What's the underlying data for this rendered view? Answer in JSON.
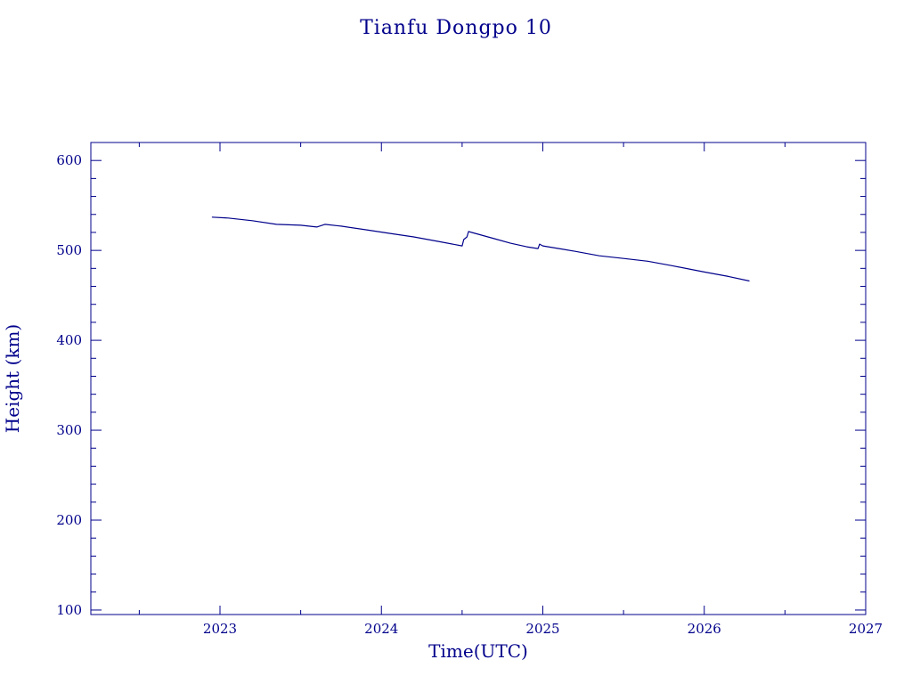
{
  "chart_data": {
    "type": "line",
    "title": "Tianfu Dongpo 10",
    "xlabel": "Time(UTC)",
    "ylabel": "Height (km)",
    "xlim": [
      2022.2,
      2027.0
    ],
    "ylim": [
      95,
      620
    ],
    "x_major_ticks": [
      2023,
      2024,
      2025,
      2026,
      2027
    ],
    "x_tick_labels": [
      "2023",
      "2024",
      "2025",
      "2026",
      "2027"
    ],
    "x_minor_step": 0.5,
    "y_major_ticks": [
      100,
      200,
      300,
      400,
      500,
      600
    ],
    "y_tick_labels": [
      "100",
      "200",
      "300",
      "400",
      "500",
      "600"
    ],
    "y_minor_step": 20,
    "grid": false,
    "line_color": "#00008b",
    "series": [
      {
        "x": [
          2022.95,
          2023.05,
          2023.2,
          2023.35,
          2023.5,
          2023.6,
          2023.65,
          2023.75,
          2023.9,
          2024.05,
          2024.2,
          2024.35,
          2024.5,
          2024.51,
          2024.53,
          2024.54,
          2024.56,
          2024.6,
          2024.7,
          2024.8,
          2024.9,
          2024.97,
          2024.98,
          2025.0,
          2025.1,
          2025.2,
          2025.35,
          2025.5,
          2025.65,
          2025.8,
          2026.0,
          2026.15,
          2026.28
        ],
        "y": [
          537,
          536,
          533,
          529,
          528,
          526,
          529,
          527,
          523,
          519,
          515,
          510,
          505,
          512,
          515,
          521,
          520,
          518,
          513,
          508,
          504,
          502,
          507,
          505,
          502,
          499,
          494,
          491,
          488,
          483,
          476,
          471,
          466
        ]
      }
    ]
  }
}
